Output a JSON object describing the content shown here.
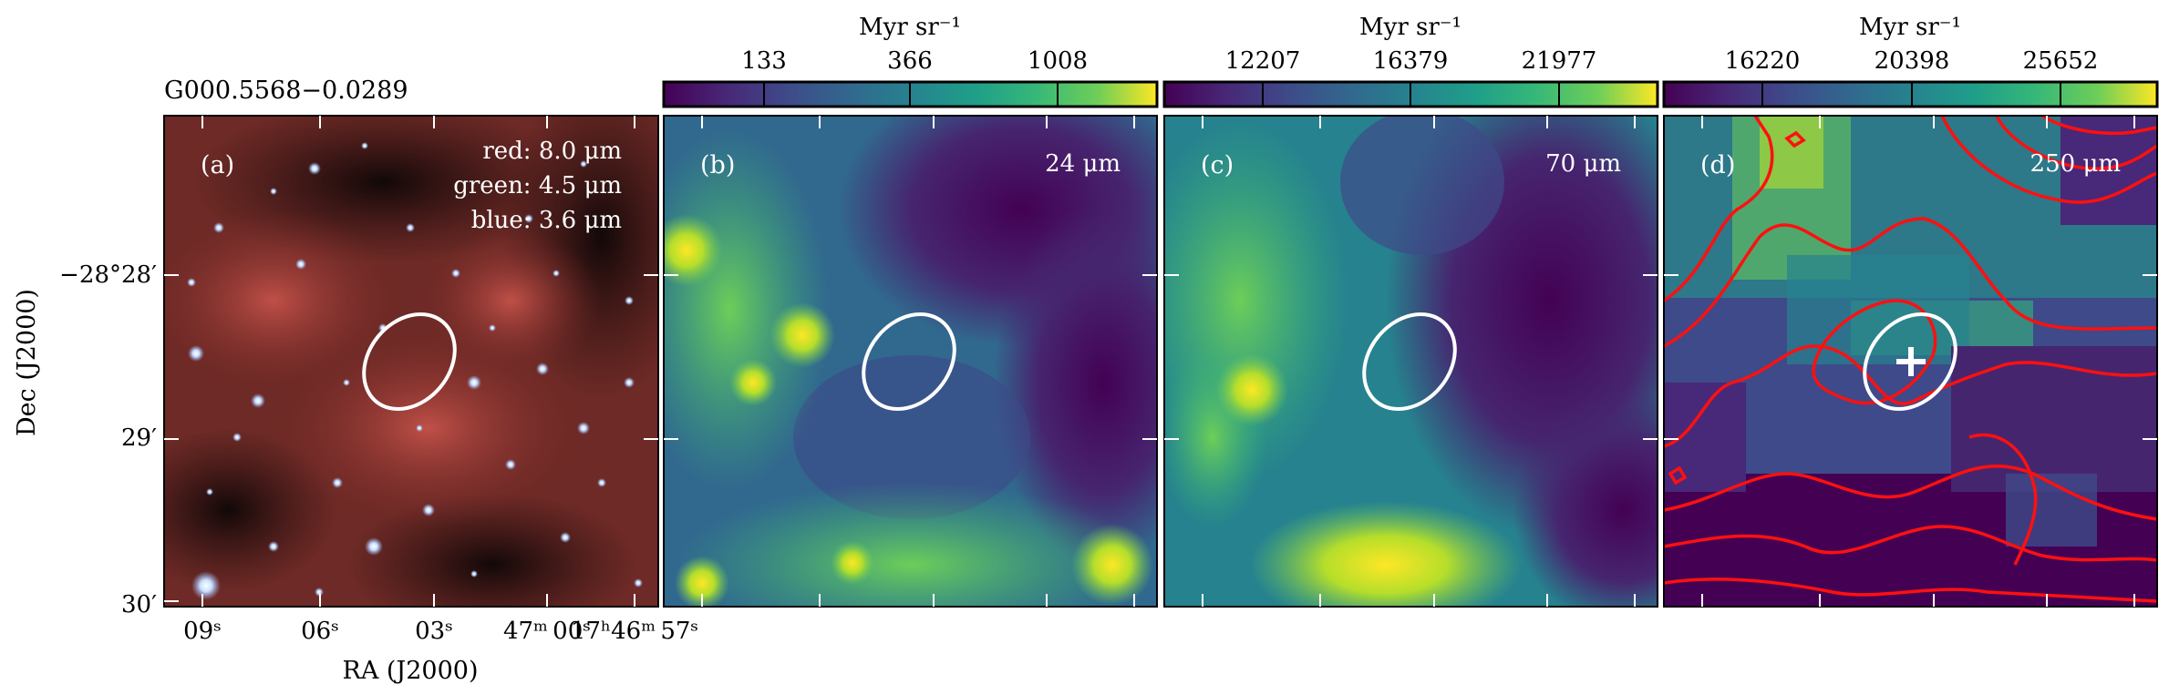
{
  "source_name": "G000.5568−0.0289",
  "axes": {
    "ylabel": "Dec (J2000)",
    "xlabel": "RA (J2000)",
    "dec_ticks": [
      "−28°28′",
      "29′",
      "30′"
    ],
    "ra_ticks": [
      "09ˢ",
      "06ˢ",
      "03ˢ",
      "47ᵐ 00ˢ",
      "17ʰ46ᵐ 57ˢ"
    ]
  },
  "panels": [
    {
      "id": "a",
      "label": "(a)",
      "band_lines": [
        "red: 8.0 μm",
        "green: 4.5 μm",
        "blue: 3.6 μm"
      ]
    },
    {
      "id": "b",
      "label": "(b)",
      "band": "24 μm",
      "colorbar": {
        "unit": "Myr sr⁻¹",
        "ticks": [
          "133",
          "366",
          "1008"
        ]
      }
    },
    {
      "id": "c",
      "label": "(c)",
      "band": "70 μm",
      "colorbar": {
        "unit": "Myr sr⁻¹",
        "ticks": [
          "12207",
          "16379",
          "21977"
        ]
      }
    },
    {
      "id": "d",
      "label": "(d)",
      "band": "250 μm",
      "colorbar": {
        "unit": "Myr sr⁻¹",
        "ticks": [
          "16220",
          "20398",
          "25652"
        ]
      }
    }
  ],
  "colors": {
    "ellipse": "#ffffff",
    "contour": "#ff1010",
    "marker": "#ffffff"
  }
}
